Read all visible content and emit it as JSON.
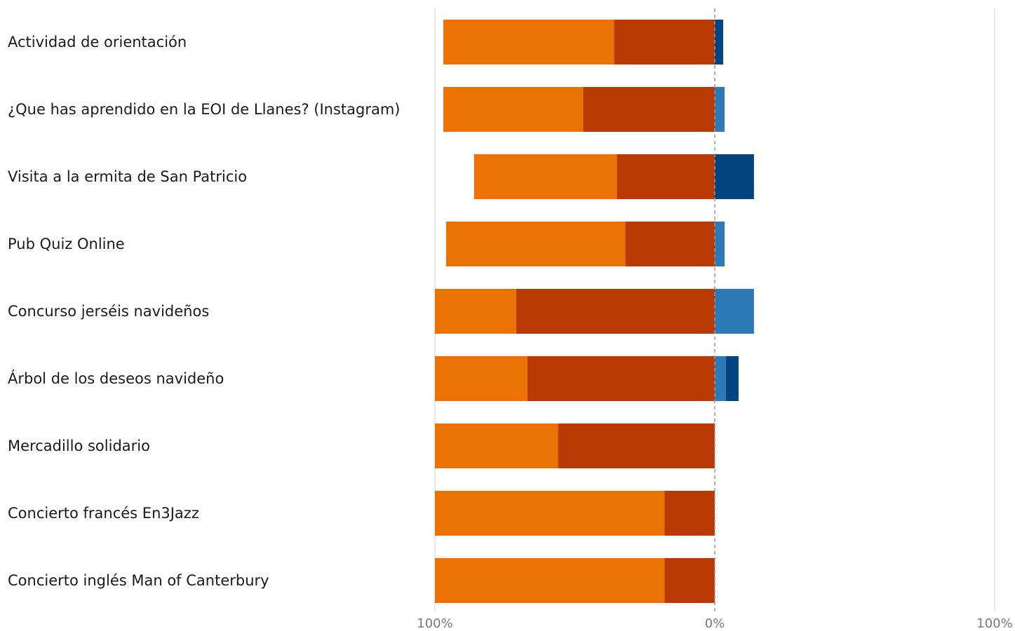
{
  "chart_data": {
    "type": "bar",
    "subtype": "diverging-stacked-horizontal",
    "categories": [
      "Actividad de orientación",
      "¿Que has aprendido en la EOI de Llanes? (Instagram)",
      "Visita a la ermita de San Patricio",
      "Pub Quiz Online",
      "Concurso jerséis navideños",
      "Árbol de los deseos navideño",
      "Mercadillo solidario",
      "Concierto francés En3Jazz",
      "Concierto inglés Man of Canterbury"
    ],
    "series": [
      {
        "side": "negative",
        "color": "#B93A04",
        "values": [
          36,
          47,
          35,
          32,
          71,
          67,
          56,
          18,
          18
        ]
      },
      {
        "side": "negative",
        "color": "#EC7206",
        "values": [
          61,
          50,
          51,
          64,
          29,
          33,
          44,
          82,
          82
        ]
      },
      {
        "side": "positive",
        "color": "#2E7AB6",
        "values": [
          0,
          3.5,
          0,
          3.5,
          14,
          4,
          0,
          0,
          0
        ]
      },
      {
        "side": "positive",
        "color": "#02447F",
        "values": [
          3,
          0,
          14,
          0,
          0,
          4.5,
          0,
          0,
          0
        ]
      }
    ],
    "xlim": [
      -100,
      100
    ],
    "xticks": [
      "100%",
      "0%",
      "100%"
    ],
    "grid": true,
    "legend": "none"
  }
}
